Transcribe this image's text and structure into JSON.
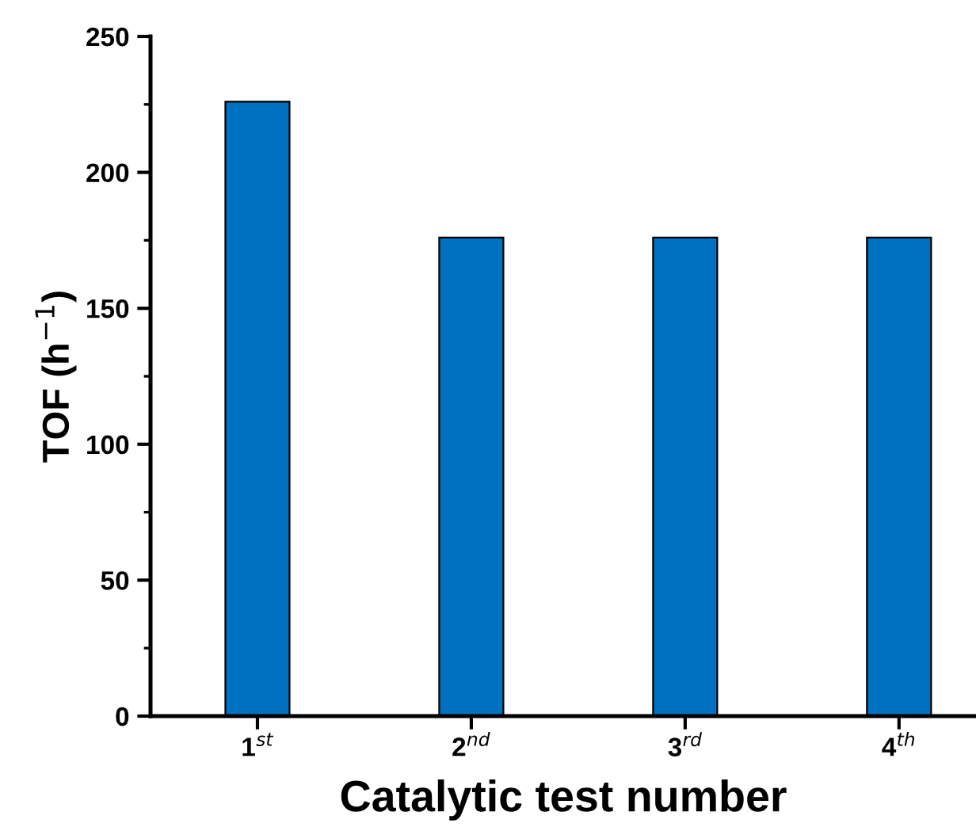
{
  "chart_data": {
    "type": "bar",
    "xlabel": "Catalytic test number",
    "ylabel": "TOF (h$^{−1}$)",
    "categories": [
      "1$^{st}$",
      "2$^{nd}$",
      "3$^{rd}$",
      "4$^{th}$"
    ],
    "values": [
      226,
      176,
      176,
      176
    ],
    "color": "#0070c0",
    "ylim": [
      0,
      250
    ],
    "yticks": [
      0,
      {
        "value": 25,
        "label": null
      },
      50,
      {
        "value": 75,
        "label": null
      },
      100,
      {
        "value": 125,
        "label": null
      },
      150,
      {
        "value": 175,
        "label": null
      },
      200,
      {
        "value": 225,
        "label": null
      },
      250
    ],
    "grid": false,
    "legend": false
  }
}
